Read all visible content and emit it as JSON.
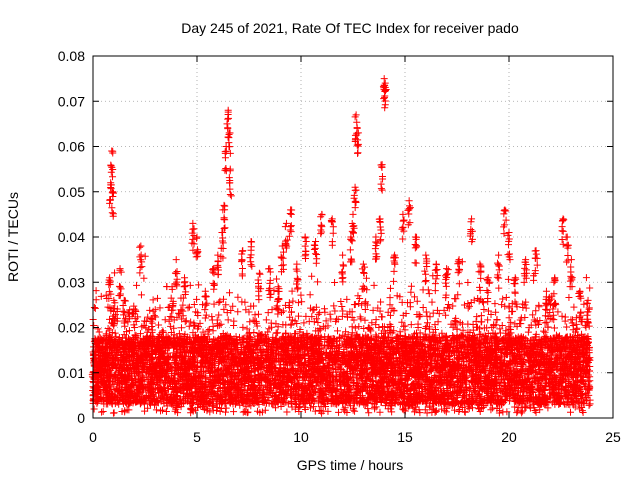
{
  "chart_data": {
    "type": "scatter",
    "title": "Day 245 of 2021, Rate Of TEC Index for receiver pado",
    "xlabel": "GPS time / hours",
    "ylabel": "ROTI / TECUs",
    "xlim": [
      0,
      25
    ],
    "ylim": [
      0,
      0.08
    ],
    "x_ticks": [
      0,
      5,
      10,
      15,
      20,
      25
    ],
    "x_tick_labels": [
      "0",
      "5",
      "10",
      "15",
      "20",
      "25"
    ],
    "y_ticks": [
      0,
      0.01,
      0.02,
      0.03,
      0.04,
      0.05,
      0.06,
      0.07,
      0.08
    ],
    "y_tick_labels": [
      "0",
      "0.01",
      "0.02",
      "0.03",
      "0.04",
      "0.05",
      "0.06",
      "0.07",
      "0.08"
    ],
    "grid": true,
    "marker": "+",
    "color": "#ff0000",
    "series": [
      {
        "name": "ROTI",
        "points": [
          [
            0.0,
            0.01
          ],
          [
            0.1,
            0.015
          ],
          [
            0.2,
            0.008
          ],
          [
            0.3,
            0.019
          ],
          [
            0.4,
            0.012
          ],
          [
            0.6,
            0.014
          ],
          [
            0.8,
            0.031
          ],
          [
            0.85,
            0.052
          ],
          [
            0.9,
            0.059
          ],
          [
            0.95,
            0.05
          ],
          [
            1.0,
            0.026
          ],
          [
            1.3,
            0.033
          ],
          [
            1.5,
            0.026
          ],
          [
            2.0,
            0.02
          ],
          [
            2.3,
            0.038
          ],
          [
            2.8,
            0.022
          ],
          [
            3.2,
            0.018
          ],
          [
            3.8,
            0.029
          ],
          [
            4.0,
            0.035
          ],
          [
            4.4,
            0.031
          ],
          [
            4.8,
            0.043
          ],
          [
            5.0,
            0.04
          ],
          [
            5.4,
            0.028
          ],
          [
            5.8,
            0.033
          ],
          [
            6.0,
            0.036
          ],
          [
            6.2,
            0.041
          ],
          [
            6.3,
            0.047
          ],
          [
            6.4,
            0.06
          ],
          [
            6.5,
            0.068
          ],
          [
            6.55,
            0.063
          ],
          [
            6.6,
            0.055
          ],
          [
            7.2,
            0.037
          ],
          [
            7.6,
            0.039
          ],
          [
            8.0,
            0.032
          ],
          [
            8.5,
            0.033
          ],
          [
            8.9,
            0.029
          ],
          [
            9.1,
            0.038
          ],
          [
            9.3,
            0.043
          ],
          [
            9.5,
            0.046
          ],
          [
            9.8,
            0.034
          ],
          [
            10.2,
            0.04
          ],
          [
            10.7,
            0.039
          ],
          [
            11.0,
            0.045
          ],
          [
            11.5,
            0.044
          ],
          [
            12.0,
            0.036
          ],
          [
            12.4,
            0.04
          ],
          [
            12.5,
            0.045
          ],
          [
            12.6,
            0.051
          ],
          [
            12.65,
            0.067
          ],
          [
            12.7,
            0.064
          ],
          [
            13.0,
            0.034
          ],
          [
            13.6,
            0.04
          ],
          [
            13.8,
            0.044
          ],
          [
            13.9,
            0.056
          ],
          [
            14.0,
            0.075
          ],
          [
            14.05,
            0.074
          ],
          [
            14.5,
            0.036
          ],
          [
            14.9,
            0.045
          ],
          [
            15.2,
            0.048
          ],
          [
            15.5,
            0.04
          ],
          [
            16.0,
            0.036
          ],
          [
            16.5,
            0.034
          ],
          [
            17.0,
            0.033
          ],
          [
            17.6,
            0.035
          ],
          [
            18.2,
            0.044
          ],
          [
            18.6,
            0.034
          ],
          [
            19.0,
            0.031
          ],
          [
            19.5,
            0.036
          ],
          [
            19.8,
            0.046
          ],
          [
            20.0,
            0.041
          ],
          [
            20.3,
            0.031
          ],
          [
            20.8,
            0.035
          ],
          [
            21.3,
            0.037
          ],
          [
            21.8,
            0.028
          ],
          [
            22.2,
            0.031
          ],
          [
            22.6,
            0.044
          ],
          [
            22.8,
            0.04
          ],
          [
            23.0,
            0.035
          ],
          [
            23.4,
            0.028
          ],
          [
            23.8,
            0.026
          ]
        ]
      }
    ],
    "generated_noise": {
      "count": 8000,
      "x_range": [
        0.0,
        23.9
      ],
      "y_base_min": 0.003,
      "y_base_max": 0.018,
      "y_floor": 0.001
    }
  }
}
